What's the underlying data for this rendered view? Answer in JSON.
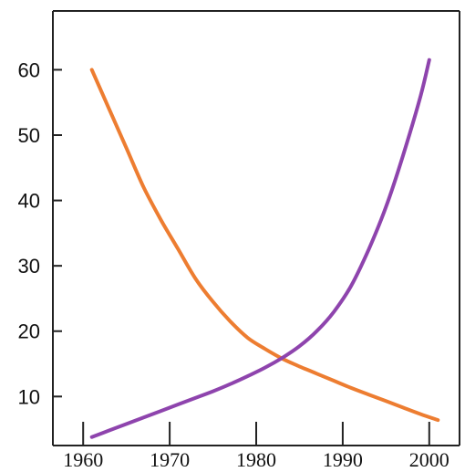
{
  "chart_data": {
    "type": "line",
    "title": "",
    "xlabel": "",
    "ylabel": "",
    "xlim": [
      1956.5,
      2003.5
    ],
    "ylim": [
      2.5,
      69
    ],
    "x_ticks": [
      1960,
      1970,
      1980,
      1990,
      2000
    ],
    "y_ticks": [
      10,
      20,
      30,
      40,
      50,
      60
    ],
    "x_tick_labels": [
      "1960",
      "1970",
      "1980",
      "1990",
      "2000"
    ],
    "y_tick_labels": [
      "10",
      "20",
      "30",
      "40",
      "50",
      "60"
    ],
    "grid": false,
    "legend": "none",
    "series": [
      {
        "color": "#ED7D31",
        "x": [
          1961,
          1963,
          1965,
          1967,
          1969,
          1971,
          1973,
          1975,
          1977,
          1979,
          1981,
          1983,
          1985,
          1987,
          1989,
          1991,
          1993,
          1995,
          1997,
          1999,
          2001
        ],
        "y": [
          60,
          54,
          48,
          42,
          37,
          32.5,
          28,
          24.5,
          21.5,
          19,
          17.3,
          15.8,
          14.6,
          13.5,
          12.4,
          11.3,
          10.3,
          9.3,
          8.3,
          7.3,
          6.4
        ]
      },
      {
        "color": "#8E44AD",
        "x": [
          1961,
          1963,
          1965,
          1967,
          1969,
          1971,
          1973,
          1975,
          1977,
          1979,
          1981,
          1983,
          1985,
          1987,
          1989,
          1991,
          1993,
          1995,
          1997,
          1999,
          2000
        ],
        "y": [
          3.8,
          4.8,
          5.8,
          6.8,
          7.8,
          8.8,
          9.8,
          10.8,
          11.9,
          13.1,
          14.4,
          15.9,
          17.7,
          20,
          23,
          27,
          32.5,
          39,
          47,
          56,
          61.5
        ]
      }
    ]
  }
}
